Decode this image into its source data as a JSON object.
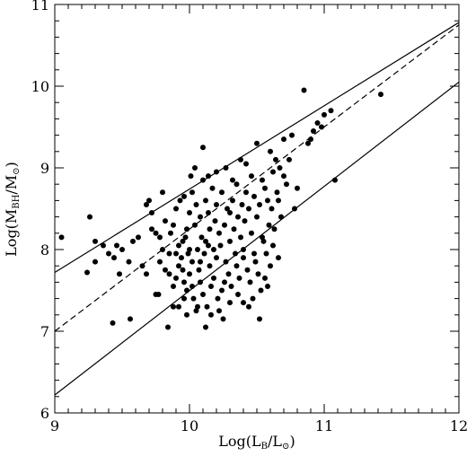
{
  "chart_data": {
    "type": "scatter",
    "title": "",
    "xlabel": {
      "base": "Log(L",
      "sub": "B",
      "mid": "/L",
      "sub2": "⊙",
      "end": ")"
    },
    "ylabel": {
      "base": "Log(M",
      "sub": "BH",
      "mid": "/M",
      "sub2": "⊙",
      "end": ")"
    },
    "xlim": [
      9,
      12
    ],
    "ylim": [
      6,
      11
    ],
    "xticks": [
      9,
      10,
      11,
      12
    ],
    "yticks": [
      6,
      7,
      8,
      9,
      10,
      11
    ],
    "lines": [
      {
        "style": "solid",
        "points": [
          [
            9,
            7.72
          ],
          [
            12,
            10.78
          ]
        ]
      },
      {
        "style": "dashed",
        "points": [
          [
            9,
            7.0
          ],
          [
            12,
            10.75
          ]
        ]
      },
      {
        "style": "solid",
        "points": [
          [
            9,
            6.22
          ],
          [
            12,
            10.05
          ]
        ]
      }
    ],
    "points": [
      [
        9.05,
        8.15
      ],
      [
        9.26,
        8.4
      ],
      [
        9.24,
        7.72
      ],
      [
        9.3,
        8.1
      ],
      [
        9.3,
        7.85
      ],
      [
        9.36,
        8.05
      ],
      [
        9.4,
        7.95
      ],
      [
        9.44,
        7.9
      ],
      [
        9.46,
        8.05
      ],
      [
        9.48,
        7.7
      ],
      [
        9.5,
        8.0
      ],
      [
        9.43,
        7.1
      ],
      [
        9.56,
        7.15
      ],
      [
        9.55,
        7.85
      ],
      [
        9.58,
        8.1
      ],
      [
        9.62,
        8.15
      ],
      [
        9.65,
        7.8
      ],
      [
        9.68,
        7.7
      ],
      [
        9.68,
        8.55
      ],
      [
        9.7,
        8.6
      ],
      [
        9.72,
        8.45
      ],
      [
        9.75,
        8.2
      ],
      [
        9.75,
        7.45
      ],
      [
        9.77,
        7.45
      ],
      [
        9.78,
        7.85
      ],
      [
        9.8,
        8.0
      ],
      [
        9.8,
        8.7
      ],
      [
        9.82,
        8.35
      ],
      [
        9.84,
        7.05
      ],
      [
        9.85,
        7.7
      ],
      [
        9.86,
        8.2
      ],
      [
        9.88,
        7.55
      ],
      [
        9.88,
        7.3
      ],
      [
        9.9,
        7.95
      ],
      [
        9.9,
        8.5
      ],
      [
        9.92,
        7.8
      ],
      [
        9.92,
        8.05
      ],
      [
        9.93,
        8.6
      ],
      [
        9.94,
        7.9
      ],
      [
        9.95,
        8.1
      ],
      [
        9.95,
        7.75
      ],
      [
        9.96,
        8.65
      ],
      [
        9.96,
        7.6
      ],
      [
        9.97,
        8.15
      ],
      [
        9.98,
        7.5
      ],
      [
        9.98,
        8.25
      ],
      [
        9.99,
        7.95
      ],
      [
        10.0,
        8.0
      ],
      [
        10.0,
        7.7
      ],
      [
        10.0,
        8.45
      ],
      [
        10.02,
        7.85
      ],
      [
        10.02,
        8.7
      ],
      [
        10.03,
        7.4
      ],
      [
        10.04,
        8.3
      ],
      [
        10.05,
        7.25
      ],
      [
        10.05,
        8.55
      ],
      [
        10.06,
        8.0
      ],
      [
        10.07,
        7.75
      ],
      [
        10.08,
        8.4
      ],
      [
        10.08,
        7.6
      ],
      [
        10.09,
        8.15
      ],
      [
        10.1,
        7.45
      ],
      [
        10.1,
        8.85
      ],
      [
        10.1,
        9.25
      ],
      [
        10.11,
        7.95
      ],
      [
        10.12,
        8.6
      ],
      [
        10.12,
        8.1
      ],
      [
        10.13,
        7.3
      ],
      [
        10.14,
        8.45
      ],
      [
        10.15,
        7.8
      ],
      [
        10.15,
        8.25
      ],
      [
        10.16,
        7.55
      ],
      [
        10.17,
        8.75
      ],
      [
        10.18,
        8.0
      ],
      [
        10.18,
        7.65
      ],
      [
        10.19,
        8.35
      ],
      [
        10.2,
        7.9
      ],
      [
        10.2,
        8.55
      ],
      [
        10.21,
        7.4
      ],
      [
        10.22,
        8.2
      ],
      [
        10.23,
        8.05
      ],
      [
        10.24,
        8.7
      ],
      [
        10.24,
        7.5
      ],
      [
        10.25,
        7.15
      ],
      [
        10.26,
        8.3
      ],
      [
        10.27,
        7.85
      ],
      [
        10.27,
        9.0
      ],
      [
        10.28,
        8.5
      ],
      [
        10.29,
        7.7
      ],
      [
        10.3,
        8.1
      ],
      [
        10.3,
        8.45
      ],
      [
        10.31,
        7.55
      ],
      [
        10.32,
        8.6
      ],
      [
        10.33,
        8.25
      ],
      [
        10.34,
        7.95
      ],
      [
        10.35,
        8.8
      ],
      [
        10.35,
        7.8
      ],
      [
        10.36,
        8.4
      ],
      [
        10.37,
        7.65
      ],
      [
        10.38,
        8.15
      ],
      [
        10.38,
        9.1
      ],
      [
        10.39,
        8.55
      ],
      [
        10.4,
        7.9
      ],
      [
        10.4,
        8.0
      ],
      [
        10.41,
        8.35
      ],
      [
        10.42,
        8.7
      ],
      [
        10.43,
        7.75
      ],
      [
        10.44,
        8.5
      ],
      [
        10.45,
        7.6
      ],
      [
        10.46,
        8.9
      ],
      [
        10.46,
        8.2
      ],
      [
        10.47,
        7.4
      ],
      [
        10.48,
        8.65
      ],
      [
        10.49,
        7.85
      ],
      [
        10.5,
        8.4
      ],
      [
        10.5,
        9.3
      ],
      [
        10.51,
        7.7
      ],
      [
        10.52,
        8.55
      ],
      [
        10.53,
        7.5
      ],
      [
        10.54,
        8.85
      ],
      [
        10.55,
        8.1
      ],
      [
        10.56,
        8.75
      ],
      [
        10.57,
        7.95
      ],
      [
        10.58,
        8.6
      ],
      [
        10.59,
        8.3
      ],
      [
        10.6,
        7.8
      ],
      [
        10.6,
        9.2
      ],
      [
        10.61,
        8.5
      ],
      [
        10.62,
        8.95
      ],
      [
        10.63,
        8.25
      ],
      [
        10.64,
        9.1
      ],
      [
        10.65,
        8.7
      ],
      [
        10.66,
        7.9
      ],
      [
        10.67,
        9.0
      ],
      [
        10.68,
        8.4
      ],
      [
        10.7,
        9.35
      ],
      [
        10.72,
        8.8
      ],
      [
        10.74,
        9.1
      ],
      [
        10.76,
        9.4
      ],
      [
        10.78,
        8.5
      ],
      [
        10.8,
        8.75
      ],
      [
        10.85,
        9.95
      ],
      [
        10.88,
        9.3
      ],
      [
        10.9,
        9.35
      ],
      [
        10.92,
        9.45
      ],
      [
        10.95,
        9.55
      ],
      [
        10.98,
        9.5
      ],
      [
        11.0,
        9.65
      ],
      [
        11.05,
        9.7
      ],
      [
        11.08,
        8.85
      ],
      [
        11.42,
        9.9
      ],
      [
        9.92,
        7.3
      ],
      [
        9.98,
        7.2
      ],
      [
        10.06,
        7.3
      ],
      [
        10.12,
        7.05
      ],
      [
        10.16,
        7.2
      ],
      [
        10.22,
        7.25
      ],
      [
        10.3,
        7.35
      ],
      [
        10.36,
        7.45
      ],
      [
        10.44,
        7.3
      ],
      [
        10.52,
        7.15
      ],
      [
        10.56,
        7.65
      ],
      [
        10.58,
        7.55
      ],
      [
        9.85,
        7.95
      ],
      [
        9.88,
        8.3
      ],
      [
        10.01,
        8.9
      ],
      [
        10.04,
        9.0
      ],
      [
        10.14,
        8.9
      ],
      [
        10.2,
        8.95
      ],
      [
        10.32,
        8.85
      ],
      [
        10.42,
        9.05
      ],
      [
        9.72,
        8.25
      ],
      [
        9.78,
        8.15
      ],
      [
        9.82,
        7.75
      ],
      [
        9.9,
        7.65
      ],
      [
        9.96,
        7.4
      ],
      [
        10.02,
        7.55
      ],
      [
        10.08,
        7.85
      ],
      [
        10.14,
        8.05
      ],
      [
        10.26,
        7.6
      ],
      [
        10.4,
        7.35
      ],
      [
        10.48,
        7.95
      ],
      [
        10.54,
        8.15
      ],
      [
        10.62,
        8.05
      ],
      [
        10.66,
        8.6
      ],
      [
        10.7,
        8.9
      ]
    ]
  }
}
